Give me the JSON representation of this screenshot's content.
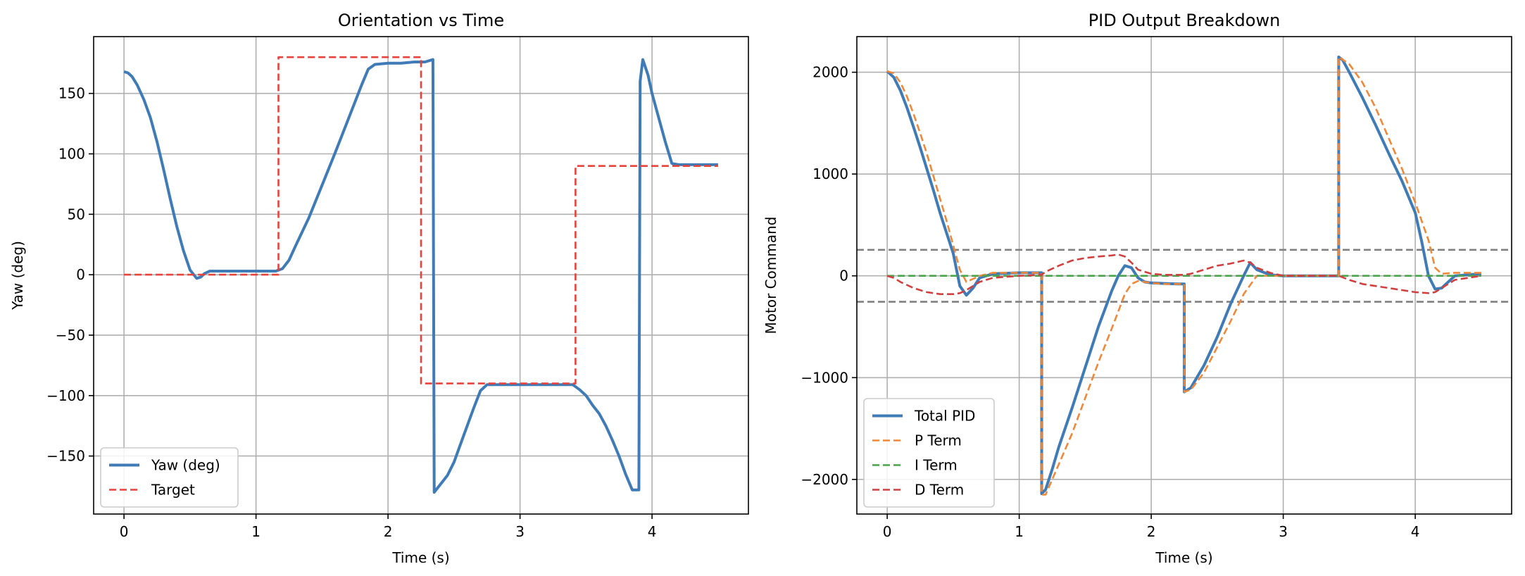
{
  "chart_data": [
    {
      "type": "line",
      "title": "Orientation vs Time",
      "xlabel": "Time (s)",
      "ylabel": "Yaw (deg)",
      "xlim": [
        -0.23,
        4.73
      ],
      "ylim": [
        -198,
        197
      ],
      "xticks": [
        0,
        1,
        2,
        3,
        4
      ],
      "xtick_labels": [
        "0",
        "1",
        "2",
        "3",
        "4"
      ],
      "yticks": [
        150,
        100,
        50,
        0,
        -50,
        -100,
        -150
      ],
      "ytick_labels": [
        "150",
        "100",
        "50",
        "0",
        "−50",
        "−100",
        "−150"
      ],
      "grid": true,
      "legend": "bottom-left",
      "series": [
        {
          "name": "Yaw (deg)",
          "color": "#3f7bb6",
          "style": "solid",
          "x": [
            0.0,
            0.03,
            0.06,
            0.1,
            0.15,
            0.2,
            0.25,
            0.3,
            0.35,
            0.4,
            0.45,
            0.5,
            0.55,
            0.58,
            0.61,
            0.65,
            0.7,
            0.8,
            1.0,
            1.15,
            1.2,
            1.25,
            1.3,
            1.4,
            1.5,
            1.6,
            1.7,
            1.8,
            1.85,
            1.9,
            2.0,
            2.1,
            2.2,
            2.28,
            2.34,
            2.35,
            2.4,
            2.45,
            2.5,
            2.55,
            2.6,
            2.65,
            2.7,
            2.75,
            2.8,
            3.0,
            3.2,
            3.4,
            3.45,
            3.5,
            3.55,
            3.6,
            3.65,
            3.7,
            3.75,
            3.8,
            3.85,
            3.9,
            3.91,
            3.93,
            3.97,
            4.0,
            4.05,
            4.1,
            4.15,
            4.2,
            4.25,
            4.3,
            4.4,
            4.5
          ],
          "y": [
            168,
            167,
            164,
            157,
            145,
            130,
            110,
            87,
            63,
            40,
            20,
            4,
            -3,
            -2,
            1,
            3,
            3,
            3,
            3,
            3,
            5,
            12,
            24,
            47,
            74,
            101,
            129,
            157,
            170,
            174,
            175,
            175,
            176,
            176,
            178,
            -180,
            -173,
            -166,
            -155,
            -140,
            -125,
            -110,
            -96,
            -91,
            -91,
            -91,
            -91,
            -91,
            -95,
            -100,
            -108,
            -115,
            -125,
            -137,
            -150,
            -165,
            -178,
            -178,
            160,
            178,
            165,
            150,
            130,
            110,
            92,
            91,
            91,
            91,
            91,
            91
          ]
        },
        {
          "name": "Target",
          "color": "#e8423a",
          "style": "dashed",
          "x": [
            0.0,
            1.17,
            1.17,
            2.25,
            2.25,
            3.42,
            3.42,
            4.5
          ],
          "y": [
            0,
            0,
            180,
            180,
            -90,
            -90,
            90,
            90
          ]
        }
      ]
    },
    {
      "type": "line",
      "title": "PID Output Breakdown",
      "xlabel": "Time (s)",
      "ylabel": "Motor Command",
      "xlim": [
        -0.23,
        4.73
      ],
      "ylim": [
        -2340,
        2350
      ],
      "xticks": [
        0,
        1,
        2,
        3,
        4
      ],
      "xtick_labels": [
        "0",
        "1",
        "2",
        "3",
        "4"
      ],
      "yticks": [
        2000,
        1000,
        0,
        -1000,
        -2000
      ],
      "ytick_labels": [
        "2000",
        "1000",
        "0",
        "−1000",
        "−2000"
      ],
      "hlines": [
        255,
        -255
      ],
      "grid": true,
      "legend": "bottom-left",
      "series": [
        {
          "name": "Total PID",
          "color": "#3f7bb6",
          "style": "solid",
          "x": [
            0.0,
            0.05,
            0.1,
            0.15,
            0.2,
            0.25,
            0.3,
            0.35,
            0.4,
            0.45,
            0.5,
            0.55,
            0.6,
            0.65,
            0.7,
            0.8,
            1.0,
            1.17,
            1.17,
            1.2,
            1.25,
            1.3,
            1.4,
            1.5,
            1.6,
            1.7,
            1.75,
            1.8,
            1.85,
            1.9,
            1.95,
            2.0,
            2.1,
            2.2,
            2.25,
            2.25,
            2.3,
            2.4,
            2.5,
            2.6,
            2.7,
            2.75,
            2.8,
            2.9,
            3.0,
            3.2,
            3.42,
            3.42,
            3.45,
            3.5,
            3.6,
            3.7,
            3.8,
            3.9,
            4.0,
            4.05,
            4.1,
            4.15,
            4.2,
            4.3,
            4.5
          ],
          "y": [
            2010,
            1950,
            1820,
            1650,
            1460,
            1260,
            1050,
            840,
            620,
            420,
            220,
            -100,
            -190,
            -120,
            -20,
            20,
            30,
            30,
            -2140,
            -2100,
            -1900,
            -1680,
            -1300,
            -900,
            -500,
            -150,
            0,
            100,
            80,
            -20,
            -60,
            -70,
            -75,
            -80,
            -80,
            -1140,
            -1100,
            -880,
            -600,
            -280,
            0,
            130,
            60,
            10,
            0,
            0,
            0,
            2150,
            2120,
            2000,
            1750,
            1480,
            1200,
            930,
            620,
            330,
            0,
            -130,
            -120,
            0,
            20
          ]
        },
        {
          "name": "P Term",
          "color": "#f0883a",
          "style": "dashed",
          "x": [
            0.0,
            0.05,
            0.1,
            0.15,
            0.2,
            0.25,
            0.3,
            0.35,
            0.4,
            0.45,
            0.5,
            0.55,
            0.6,
            0.7,
            0.8,
            1.0,
            1.17,
            1.17,
            1.2,
            1.3,
            1.4,
            1.5,
            1.6,
            1.7,
            1.75,
            1.8,
            1.85,
            1.9,
            2.0,
            2.1,
            2.25,
            2.25,
            2.3,
            2.4,
            2.5,
            2.6,
            2.7,
            2.8,
            3.0,
            3.42,
            3.42,
            3.5,
            3.6,
            3.7,
            3.8,
            3.9,
            4.0,
            4.1,
            4.15,
            4.2,
            4.3,
            4.5
          ],
          "y": [
            2010,
            1990,
            1900,
            1760,
            1590,
            1400,
            1200,
            980,
            760,
            540,
            300,
            60,
            -60,
            0,
            30,
            30,
            30,
            -2150,
            -2150,
            -1850,
            -1550,
            -1200,
            -850,
            -520,
            -350,
            -180,
            -80,
            -50,
            -70,
            -80,
            -80,
            -1140,
            -1120,
            -950,
            -700,
            -450,
            -180,
            0,
            0,
            0,
            2150,
            2080,
            1900,
            1650,
            1350,
            1050,
            720,
            350,
            80,
            20,
            30,
            30
          ]
        },
        {
          "name": "I Term",
          "color": "#4aa44a",
          "style": "dashed",
          "x": [
            0.0,
            4.5
          ],
          "y": [
            0,
            0
          ]
        },
        {
          "name": "D Term",
          "color": "#d04040",
          "style": "dashed",
          "x": [
            0.0,
            0.05,
            0.1,
            0.2,
            0.3,
            0.4,
            0.5,
            0.55,
            0.6,
            0.7,
            0.8,
            1.0,
            1.17,
            1.2,
            1.3,
            1.4,
            1.5,
            1.6,
            1.7,
            1.75,
            1.8,
            1.85,
            1.9,
            2.0,
            2.1,
            2.25,
            2.3,
            2.4,
            2.5,
            2.6,
            2.7,
            2.75,
            2.8,
            2.9,
            3.0,
            3.2,
            3.42,
            3.5,
            3.6,
            3.7,
            3.8,
            3.9,
            4.0,
            4.1,
            4.15,
            4.2,
            4.3,
            4.5
          ],
          "y": [
            0,
            -20,
            -60,
            -120,
            -160,
            -180,
            -180,
            -170,
            -140,
            -60,
            -20,
            0,
            10,
            40,
            100,
            150,
            175,
            190,
            200,
            210,
            190,
            130,
            60,
            20,
            10,
            10,
            20,
            60,
            100,
            120,
            150,
            130,
            80,
            30,
            0,
            0,
            0,
            -40,
            -80,
            -100,
            -120,
            -140,
            -160,
            -170,
            -160,
            -120,
            -40,
            0
          ]
        }
      ]
    }
  ]
}
